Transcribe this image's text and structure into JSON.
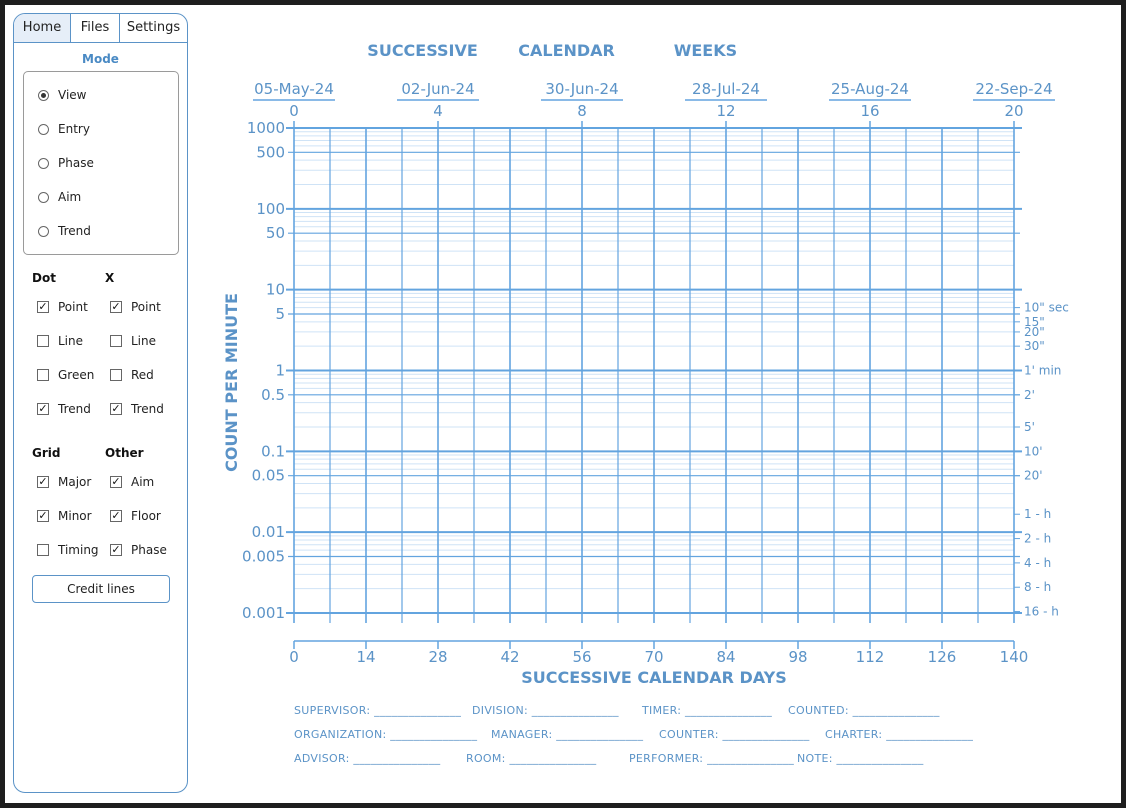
{
  "tabs": [
    "Home",
    "Files",
    "Settings"
  ],
  "mode": {
    "title": "Mode",
    "options": [
      "View",
      "Entry",
      "Phase",
      "Aim",
      "Trend"
    ],
    "selected": "View"
  },
  "dot": {
    "title": "Dot",
    "items": [
      {
        "label": "Point",
        "checked": true
      },
      {
        "label": "Line",
        "checked": false
      },
      {
        "label": "Green",
        "checked": false
      },
      {
        "label": "Trend",
        "checked": true
      }
    ]
  },
  "x": {
    "title": "X",
    "items": [
      {
        "label": "Point",
        "checked": true
      },
      {
        "label": "Line",
        "checked": false
      },
      {
        "label": "Red",
        "checked": false
      },
      {
        "label": "Trend",
        "checked": true
      }
    ]
  },
  "grid": {
    "title": "Grid",
    "items": [
      {
        "label": "Major",
        "checked": true
      },
      {
        "label": "Minor",
        "checked": true
      },
      {
        "label": "Timing",
        "checked": false
      }
    ]
  },
  "other": {
    "title": "Other",
    "items": [
      {
        "label": "Aim",
        "checked": true
      },
      {
        "label": "Floor",
        "checked": true
      },
      {
        "label": "Phase",
        "checked": true
      }
    ]
  },
  "credit_button": "Credit lines",
  "chart_data": {
    "type": "scatter",
    "top_title_words": [
      "SUCCESSIVE",
      "CALENDAR",
      "WEEKS"
    ],
    "top_dates": [
      "05-May-24",
      "02-Jun-24",
      "30-Jun-24",
      "28-Jul-24",
      "25-Aug-24",
      "22-Sep-24"
    ],
    "week_ticks": [
      0,
      4,
      8,
      12,
      16,
      20
    ],
    "day_ticks": [
      0,
      14,
      28,
      42,
      56,
      70,
      84,
      98,
      112,
      126,
      140
    ],
    "xlabel": "SUCCESSIVE CALENDAR DAYS",
    "ylabel": "COUNT PER MINUTE",
    "xlim": [
      0,
      140
    ],
    "ylim": [
      0.001,
      1000
    ],
    "y_scale": "log",
    "y_ticks": [
      "1000",
      "500",
      "100",
      "50",
      "10",
      "5",
      "1",
      "0.5",
      "0.1",
      "0.05",
      "0.01",
      "0.005",
      "0.001"
    ],
    "y_tick_values": [
      1000,
      500,
      100,
      50,
      10,
      5,
      1,
      0.5,
      0.1,
      0.05,
      0.01,
      0.005,
      0.001
    ],
    "timing_labels": [
      "10\" sec",
      "15\"",
      "20\"",
      "30\"",
      "1' min",
      "2'",
      "5'",
      "10'",
      "20'",
      "1 - h",
      "2 - h",
      "4 - h",
      "8 - h",
      "16 - h"
    ],
    "timing_values": [
      6,
      4,
      3,
      2,
      1,
      0.5,
      0.2,
      0.1,
      0.05,
      0.016667,
      0.008333,
      0.004167,
      0.002083,
      0.001042
    ],
    "grid": true,
    "series": [],
    "color": "#5b93c7",
    "major_color": "#63a4df",
    "minor_color": "#cfe3f6"
  },
  "form": {
    "row1": [
      "SUPERVISOR: _______________",
      "DIVISION: _______________",
      "TIMER: _______________",
      "COUNTED: _______________"
    ],
    "row2": [
      "ORGANIZATION: _______________",
      "MANAGER: _______________",
      "COUNTER: _______________",
      "CHARTER: _______________"
    ],
    "row3": [
      "ADVISOR: _______________",
      "ROOM: _______________",
      "PERFORMER: _______________",
      "NOTE: _______________"
    ]
  }
}
